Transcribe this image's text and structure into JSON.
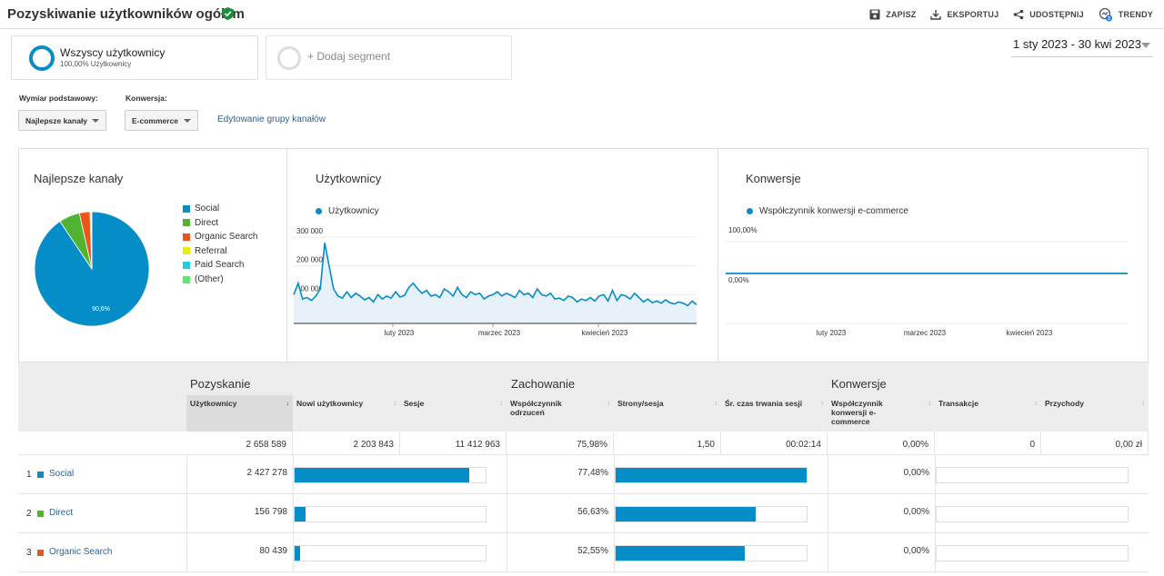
{
  "header": {
    "title": "Pozyskiwanie użytkowników ogółem",
    "actions": {
      "save": "ZAPISZ",
      "export": "EKSPORTUJ",
      "share": "UDOSTĘPNIJ",
      "trends": "TRENDY",
      "trends_badge": "3"
    }
  },
  "segments": {
    "all_users_name": "Wszyscy użytkownicy",
    "all_users_share": "100,00% Użytkownicy",
    "add_segment": "+ Dodaj segment"
  },
  "date_range": "1 sty 2023 - 30 kwi 2023",
  "controls": {
    "primary_dimension_label": "Wymiar podstawowy:",
    "primary_dimension_value": "Najlepsze kanały",
    "conversion_label": "Konwersja:",
    "conversion_value": "E-commerce",
    "edit_channel_group": "Edytowanie grupy kanałów"
  },
  "colors": {
    "accent": "#058dc7",
    "social": "#058dc7",
    "direct": "#50b432",
    "organic": "#ed561b",
    "referral": "#edef00",
    "paid": "#24cbe5",
    "other": "#64e572"
  },
  "panels": {
    "channels_title": "Najlepsze kanały",
    "users_title": "Użytkownicy",
    "conversions_title": "Konwersje"
  },
  "chart_data": [
    {
      "type": "pie",
      "title": "Najlepsze kanały",
      "categories": [
        "Social",
        "Direct",
        "Organic Search",
        "Referral",
        "Paid Search",
        "(Other)"
      ],
      "values": [
        90.6,
        5.9,
        3.0,
        0.3,
        0.1,
        0.1
      ],
      "slice_label": "90,6%",
      "legend": "right"
    },
    {
      "type": "area",
      "title": "Użytkownicy",
      "series": [
        {
          "name": "Użytkownicy",
          "values": [
            100000,
            140000,
            85000,
            90000,
            80000,
            95000,
            120000,
            280000,
            200000,
            120000,
            95000,
            88000,
            110000,
            90000,
            105000,
            95000,
            82000,
            90000,
            75000,
            100000,
            85000,
            95000,
            88000,
            110000,
            92000,
            97000,
            125000,
            140000,
            120000,
            105000,
            115000,
            95000,
            100000,
            90000,
            120000,
            110000,
            95000,
            125000,
            100000,
            90000,
            110000,
            100000,
            105000,
            85000,
            95000,
            100000,
            110000,
            95000,
            105000,
            98000,
            90000,
            115000,
            100000,
            105000,
            90000,
            120000,
            100000,
            95000,
            105000,
            85000,
            88000,
            80000,
            95000,
            90000,
            75000,
            85000,
            80000,
            90000,
            78000,
            95000,
            100000,
            78000,
            115000,
            80000,
            100000,
            95000,
            85000,
            105000,
            90000,
            75000,
            85000,
            72000,
            78000,
            70000,
            82000,
            72000,
            68000,
            75000,
            70000,
            62000,
            78000,
            65000
          ]
        }
      ],
      "x_ticks": [
        "luty 2023",
        "marzec 2023",
        "kwiecień 2023"
      ],
      "y_ticks": [
        "100 000",
        "200 000",
        "300 000"
      ],
      "legend": "top-left"
    },
    {
      "type": "line",
      "title": "Konwersje",
      "series": [
        {
          "name": "Współczynnik konwersji e-commerce",
          "values": [
            0,
            0
          ]
        }
      ],
      "x_ticks": [
        "luty 2023",
        "marzec 2023",
        "kwiecień 2023"
      ],
      "y_ticks": [
        "100,00%",
        "0,00%"
      ],
      "legend": "top-left"
    }
  ],
  "table": {
    "groups": {
      "acquisition": "Pozyskanie",
      "behavior": "Zachowanie",
      "conversions": "Konwersje"
    },
    "columns": {
      "users": "Użytkownicy",
      "new_users": "Nowi użytkownicy",
      "sessions": "Sesje",
      "bounce": "Współczynnik odrzuceń",
      "pages": "Strony/sesja",
      "duration": "Śr. czas trwania sesji",
      "conv_rate": "Współczynnik konwersji e-commerce",
      "transactions": "Transakcje",
      "revenue": "Przychody"
    },
    "totals": {
      "users": "2 658 589",
      "new_users": "2 203 843",
      "sessions": "11 412 963",
      "bounce": "75,98%",
      "pages": "1,50",
      "duration": "00:02:14",
      "conv_rate": "0,00%",
      "transactions": "0",
      "revenue": "0,00 zł"
    },
    "rows": [
      {
        "num": "1",
        "name": "Social",
        "users": "2 427 278",
        "bounce": "77,48%",
        "conv": "0,00%",
        "users_share": 0.913,
        "bounce_share": 1.0
      },
      {
        "num": "2",
        "name": "Direct",
        "users": "156 798",
        "bounce": "56,63%",
        "conv": "0,00%",
        "users_share": 0.059,
        "bounce_share": 0.731
      },
      {
        "num": "3",
        "name": "Organic Search",
        "users": "80 439",
        "bounce": "52,55%",
        "conv": "0,00%",
        "users_share": 0.03,
        "bounce_share": 0.678
      }
    ]
  }
}
